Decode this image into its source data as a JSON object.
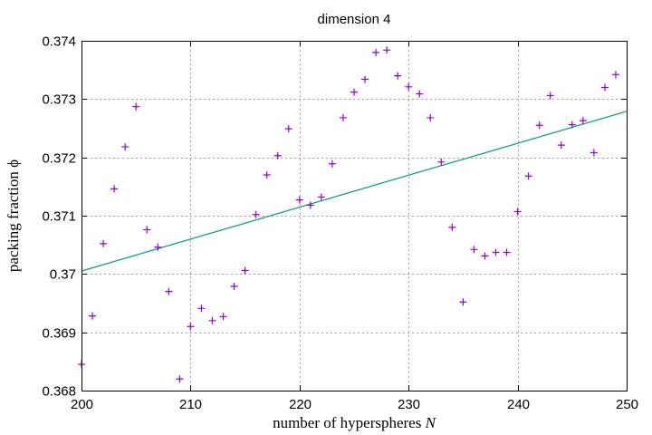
{
  "chart_data": {
    "type": "scatter",
    "title": "dimension 4",
    "xlabel": "number of hyperspheres",
    "xlabel_var": "N",
    "ylabel": "packing fraction",
    "ylabel_var": "ϕ",
    "xlim": [
      200,
      250
    ],
    "ylim": [
      0.368,
      0.374
    ],
    "xticks": [
      200,
      210,
      220,
      230,
      240,
      250
    ],
    "xtick_labels": [
      "200",
      "210",
      "220",
      "230",
      "240",
      "250"
    ],
    "yticks": [
      0.368,
      0.369,
      0.37,
      0.371,
      0.372,
      0.373,
      0.374
    ],
    "ytick_labels": [
      "0.368",
      "0.369",
      "0.37",
      "0.371",
      "0.372",
      "0.373",
      "0.374"
    ],
    "grid": true,
    "colors": {
      "points": "#9400d3",
      "fit": "#009e73"
    },
    "series": [
      {
        "kind": "points",
        "marker": "plus",
        "x": [
          200,
          201,
          202,
          203,
          204,
          205,
          206,
          207,
          208,
          209,
          210,
          211,
          212,
          213,
          214,
          215,
          216,
          217,
          218,
          219,
          220,
          221,
          222,
          223,
          224,
          225,
          226,
          227,
          228,
          229,
          230,
          231,
          232,
          233,
          234,
          235,
          236,
          237,
          238,
          239,
          240,
          241,
          242,
          243,
          244,
          245,
          246,
          247,
          248,
          249
        ],
        "y": [
          0.36845,
          0.36928,
          0.37052,
          0.37146,
          0.37218,
          0.37287,
          0.37076,
          0.37046,
          0.3697,
          0.3682,
          0.3691,
          0.36941,
          0.3692,
          0.36927,
          0.36979,
          0.37006,
          0.37102,
          0.3717,
          0.37203,
          0.37249,
          0.37127,
          0.37118,
          0.37132,
          0.37189,
          0.37268,
          0.37312,
          0.37334,
          0.3738,
          0.37384,
          0.3734,
          0.37321,
          0.37309,
          0.37268,
          0.37192,
          0.3708,
          0.36952,
          0.37042,
          0.37031,
          0.37037,
          0.37037,
          0.37107,
          0.37168,
          0.37255,
          0.37306,
          0.37221,
          0.37256,
          0.37263,
          0.37208,
          0.3732,
          0.37342
        ]
      },
      {
        "kind": "line",
        "x": [
          200,
          250
        ],
        "y": [
          0.37005,
          0.37279
        ]
      }
    ]
  }
}
